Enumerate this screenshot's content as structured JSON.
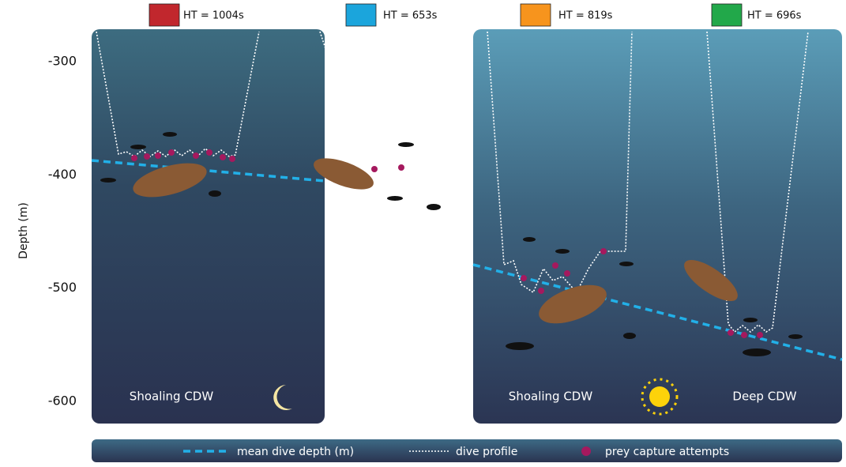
{
  "legend_top": [
    {
      "label": "HT = 1004s",
      "color": "#c1272d"
    },
    {
      "label": "HT = 653s",
      "color": "#1ba5dc"
    },
    {
      "label": "HT = 819s",
      "color": "#f7941d"
    },
    {
      "label": "HT = 696s",
      "color": "#22a84a"
    }
  ],
  "y_axis": {
    "label": "Depth (m)",
    "ticks": [
      -300,
      -400,
      -500,
      -600
    ]
  },
  "panels": [
    {
      "labels": [
        "Shoaling CDW",
        "Deep CDW"
      ]
    },
    {
      "labels": [
        "Shoaling CDW",
        "Deep CDW"
      ]
    }
  ],
  "legend_bottom": [
    "mean dive depth (m)",
    "dive profile",
    "prey capture attempts"
  ]
}
